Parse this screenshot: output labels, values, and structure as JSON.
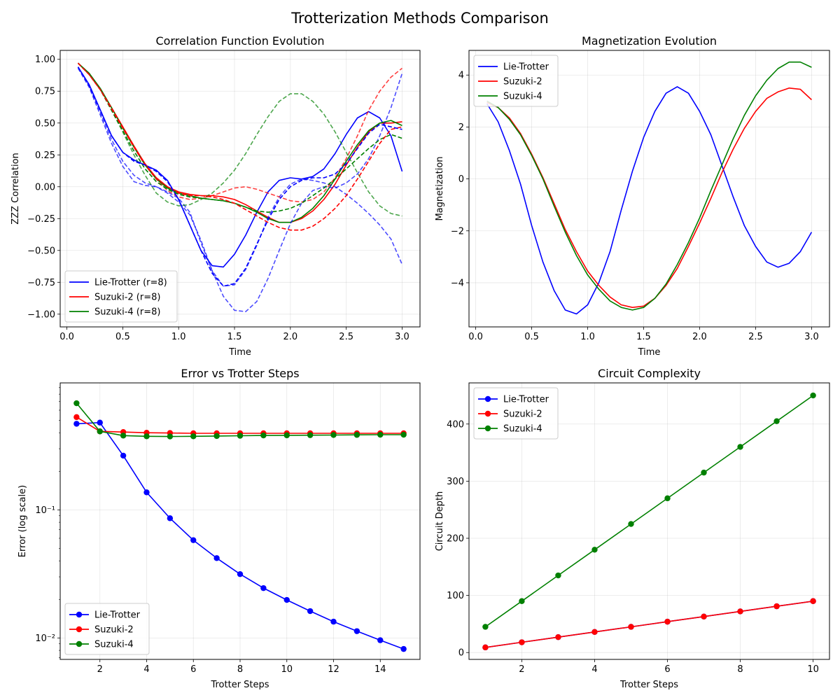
{
  "figure_title": "Trotterization Methods Comparison",
  "chart_data": [
    {
      "type": "line",
      "title": "Correlation Function Evolution",
      "xlabel": "Time",
      "ylabel": "ZZZ Correlation",
      "xlim": [
        -0.06,
        3.16
      ],
      "ylim": [
        -1.1,
        1.07
      ],
      "xticks": [
        0.0,
        0.5,
        1.0,
        1.5,
        2.0,
        2.5,
        3.0
      ],
      "xtick_labels": [
        "0.0",
        "0.5",
        "1.0",
        "1.5",
        "2.0",
        "2.5",
        "3.0"
      ],
      "yticks": [
        -1.0,
        -0.75,
        -0.5,
        -0.25,
        0.0,
        0.25,
        0.5,
        0.75,
        1.0
      ],
      "ytick_labels": [
        "−1.00",
        "−0.75",
        "−0.50",
        "−0.25",
        "0.00",
        "0.25",
        "0.50",
        "0.75",
        "1.00"
      ],
      "grid": true,
      "legend_position": "lower-left",
      "x": [
        0.1,
        0.2,
        0.3,
        0.4,
        0.5,
        0.6,
        0.7,
        0.8,
        0.9,
        1.0,
        1.1,
        1.2,
        1.3,
        1.4,
        1.5,
        1.6,
        1.7,
        1.8,
        1.9,
        2.0,
        2.1,
        2.2,
        2.3,
        2.4,
        2.5,
        2.6,
        2.7,
        2.8,
        2.9,
        3.0
      ],
      "series": [
        {
          "name": "Lie-Trotter (r=8)",
          "color": "#0000ff",
          "style": "solid",
          "legend": true,
          "values": [
            0.94,
            0.8,
            0.6,
            0.4,
            0.27,
            0.21,
            0.17,
            0.13,
            0.05,
            -0.1,
            -0.3,
            -0.5,
            -0.62,
            -0.63,
            -0.53,
            -0.38,
            -0.2,
            -0.04,
            0.05,
            0.07,
            0.06,
            0.08,
            0.14,
            0.26,
            0.41,
            0.54,
            0.59,
            0.54,
            0.4,
            0.12
          ]
        },
        {
          "name": "Suzuki-2 (r=8)",
          "color": "#ff0000",
          "style": "solid",
          "legend": true,
          "values": [
            0.97,
            0.88,
            0.76,
            0.62,
            0.47,
            0.32,
            0.18,
            0.07,
            0.0,
            -0.04,
            -0.06,
            -0.07,
            -0.07,
            -0.08,
            -0.1,
            -0.14,
            -0.19,
            -0.24,
            -0.28,
            -0.28,
            -0.25,
            -0.19,
            -0.1,
            0.02,
            0.17,
            0.31,
            0.43,
            0.5,
            0.5,
            0.51
          ]
        },
        {
          "name": "Suzuki-4 (r=8)",
          "color": "#008000",
          "style": "solid",
          "legend": true,
          "values": [
            0.97,
            0.89,
            0.77,
            0.62,
            0.46,
            0.31,
            0.17,
            0.06,
            -0.01,
            -0.05,
            -0.07,
            -0.09,
            -0.1,
            -0.11,
            -0.13,
            -0.16,
            -0.2,
            -0.25,
            -0.28,
            -0.28,
            -0.24,
            -0.17,
            -0.07,
            0.06,
            0.2,
            0.33,
            0.44,
            0.5,
            0.52,
            0.48
          ]
        },
        {
          "color": "#0000ff",
          "style": "dashed",
          "opacity": 0.7,
          "legend": false,
          "values": [
            0.93,
            0.78,
            0.56,
            0.34,
            0.16,
            0.04,
            0.01,
            0.0,
            -0.04,
            -0.09,
            -0.2,
            -0.44,
            -0.66,
            -0.78,
            -0.77,
            -0.65,
            -0.46,
            -0.24,
            -0.08,
            0.02,
            0.06,
            0.05,
            0.03,
            0.0,
            -0.06,
            -0.13,
            -0.21,
            -0.3,
            -0.41,
            -0.61
          ]
        },
        {
          "color": "#0000ff",
          "style": "dashed",
          "opacity": 0.7,
          "legend": false,
          "values": [
            0.94,
            0.79,
            0.58,
            0.37,
            0.2,
            0.09,
            0.03,
            0.0,
            -0.05,
            -0.12,
            -0.22,
            -0.42,
            -0.66,
            -0.86,
            -0.97,
            -0.98,
            -0.9,
            -0.72,
            -0.5,
            -0.29,
            -0.13,
            -0.03,
            0.0,
            -0.01,
            0.03,
            0.1,
            0.22,
            0.4,
            0.62,
            0.89
          ]
        },
        {
          "color": "#ff0000",
          "style": "dashed",
          "opacity": 0.75,
          "legend": false,
          "values": [
            0.97,
            0.88,
            0.76,
            0.62,
            0.47,
            0.32,
            0.17,
            0.06,
            -0.03,
            -0.08,
            -0.1,
            -0.09,
            -0.07,
            -0.04,
            -0.01,
            0.0,
            -0.02,
            -0.05,
            -0.08,
            -0.11,
            -0.12,
            -0.1,
            -0.04,
            0.07,
            0.22,
            0.4,
            0.6,
            0.75,
            0.86,
            0.93
          ]
        },
        {
          "color": "#008000",
          "style": "dashed",
          "opacity": 0.7,
          "legend": false,
          "values": [
            0.97,
            0.89,
            0.76,
            0.6,
            0.43,
            0.25,
            0.09,
            -0.05,
            -0.12,
            -0.15,
            -0.14,
            -0.1,
            -0.05,
            0.03,
            0.13,
            0.26,
            0.41,
            0.55,
            0.67,
            0.73,
            0.73,
            0.67,
            0.57,
            0.43,
            0.27,
            0.11,
            -0.04,
            -0.15,
            -0.21,
            -0.23
          ]
        },
        {
          "color": "#008000",
          "style": "dashed",
          "opacity": 1.0,
          "legend": false,
          "values": [
            0.97,
            0.88,
            0.76,
            0.6,
            0.44,
            0.28,
            0.14,
            0.04,
            -0.02,
            -0.06,
            -0.08,
            -0.09,
            -0.1,
            -0.11,
            -0.13,
            -0.16,
            -0.19,
            -0.2,
            -0.19,
            -0.17,
            -0.13,
            -0.07,
            -0.01,
            0.06,
            0.14,
            0.22,
            0.3,
            0.37,
            0.41,
            0.38
          ]
        },
        {
          "color": "#ff0000",
          "style": "dashed",
          "opacity": 1.0,
          "legend": false,
          "values": [
            0.97,
            0.88,
            0.76,
            0.61,
            0.46,
            0.31,
            0.17,
            0.07,
            0.0,
            -0.05,
            -0.07,
            -0.07,
            -0.08,
            -0.1,
            -0.13,
            -0.18,
            -0.23,
            -0.28,
            -0.32,
            -0.34,
            -0.34,
            -0.31,
            -0.25,
            -0.17,
            -0.07,
            0.06,
            0.2,
            0.34,
            0.45,
            0.47
          ]
        },
        {
          "color": "#0000ff",
          "style": "dashed",
          "opacity": 1.0,
          "legend": false,
          "values": [
            0.94,
            0.79,
            0.6,
            0.4,
            0.27,
            0.2,
            0.17,
            0.12,
            0.04,
            -0.1,
            -0.3,
            -0.5,
            -0.68,
            -0.78,
            -0.76,
            -0.64,
            -0.45,
            -0.26,
            -0.1,
            0.0,
            0.05,
            0.07,
            0.07,
            0.1,
            0.18,
            0.3,
            0.42,
            0.49,
            0.47,
            0.45
          ]
        }
      ]
    },
    {
      "type": "line",
      "title": "Magnetization Evolution",
      "xlabel": "Time",
      "ylabel": "Magnetization",
      "xlim": [
        -0.06,
        3.16
      ],
      "ylim": [
        -5.7,
        4.95
      ],
      "xticks": [
        0.0,
        0.5,
        1.0,
        1.5,
        2.0,
        2.5,
        3.0
      ],
      "xtick_labels": [
        "0.0",
        "0.5",
        "1.0",
        "1.5",
        "2.0",
        "2.5",
        "3.0"
      ],
      "yticks": [
        -4,
        -2,
        0,
        2,
        4
      ],
      "ytick_labels": [
        "−4",
        "−2",
        "0",
        "2",
        "4"
      ],
      "grid": true,
      "legend_position": "upper-left",
      "x": [
        0.1,
        0.2,
        0.3,
        0.4,
        0.5,
        0.6,
        0.7,
        0.8,
        0.9,
        1.0,
        1.1,
        1.2,
        1.3,
        1.4,
        1.5,
        1.6,
        1.7,
        1.8,
        1.9,
        2.0,
        2.1,
        2.2,
        2.3,
        2.4,
        2.5,
        2.6,
        2.7,
        2.8,
        2.9,
        3.0
      ],
      "series": [
        {
          "name": "Lie-Trotter",
          "color": "#0000ff",
          "style": "solid",
          "legend": true,
          "values": [
            2.9,
            2.2,
            1.1,
            -0.2,
            -1.8,
            -3.2,
            -4.3,
            -5.05,
            -5.2,
            -4.85,
            -4.0,
            -2.8,
            -1.2,
            0.3,
            1.6,
            2.6,
            3.3,
            3.55,
            3.3,
            2.6,
            1.7,
            0.5,
            -0.7,
            -1.8,
            -2.6,
            -3.2,
            -3.4,
            -3.25,
            -2.8,
            -2.05
          ]
        },
        {
          "name": "Suzuki-2",
          "color": "#ff0000",
          "style": "solid",
          "legend": true,
          "values": [
            2.95,
            2.75,
            2.35,
            1.75,
            0.95,
            0.05,
            -0.95,
            -1.95,
            -2.8,
            -3.55,
            -4.1,
            -4.55,
            -4.85,
            -4.95,
            -4.9,
            -4.6,
            -4.1,
            -3.45,
            -2.6,
            -1.7,
            -0.75,
            0.25,
            1.15,
            1.95,
            2.6,
            3.1,
            3.35,
            3.5,
            3.45,
            3.05
          ]
        },
        {
          "name": "Suzuki-4",
          "color": "#008000",
          "style": "solid",
          "legend": true,
          "values": [
            3.0,
            2.75,
            2.3,
            1.7,
            0.9,
            0.0,
            -1.05,
            -2.05,
            -2.95,
            -3.7,
            -4.25,
            -4.7,
            -4.95,
            -5.05,
            -4.95,
            -4.6,
            -4.05,
            -3.3,
            -2.45,
            -1.5,
            -0.45,
            0.55,
            1.55,
            2.45,
            3.2,
            3.8,
            4.25,
            4.5,
            4.5,
            4.3
          ]
        }
      ]
    },
    {
      "type": "line",
      "title": "Error vs Trotter Steps",
      "xlabel": "Trotter Steps",
      "ylabel": "Error (log scale)",
      "scale_y": "log",
      "xlim": [
        0.3,
        15.7
      ],
      "ylim": [
        0.0068,
        0.98
      ],
      "xticks": [
        2,
        4,
        6,
        8,
        10,
        12,
        14
      ],
      "xtick_labels": [
        "2",
        "4",
        "6",
        "8",
        "10",
        "12",
        "14"
      ],
      "yticks": [
        0.01,
        0.1
      ],
      "ytick_labels": [
        "10⁻²",
        "10⁻¹"
      ],
      "grid": true,
      "legend_position": "lower-left",
      "markers": true,
      "x": [
        1,
        2,
        3,
        4,
        5,
        6,
        7,
        8,
        9,
        10,
        11,
        12,
        13,
        14,
        15
      ],
      "series": [
        {
          "name": "Lie-Trotter",
          "color": "#0000ff",
          "style": "solid",
          "legend": true,
          "values": [
            0.47,
            0.48,
            0.265,
            0.137,
            0.086,
            0.058,
            0.042,
            0.0315,
            0.0245,
            0.0198,
            0.0162,
            0.0134,
            0.0113,
            0.0096,
            0.0082
          ]
        },
        {
          "name": "Suzuki-2",
          "color": "#ff0000",
          "style": "solid",
          "legend": true,
          "values": [
            0.53,
            0.41,
            0.405,
            0.4,
            0.398,
            0.396,
            0.396,
            0.396,
            0.396,
            0.396,
            0.396,
            0.396,
            0.396,
            0.396,
            0.396
          ]
        },
        {
          "name": "Suzuki-4",
          "color": "#008000",
          "style": "solid",
          "legend": true,
          "values": [
            0.68,
            0.41,
            0.38,
            0.375,
            0.374,
            0.375,
            0.377,
            0.379,
            0.381,
            0.382,
            0.383,
            0.384,
            0.385,
            0.386,
            0.386
          ]
        }
      ]
    },
    {
      "type": "line",
      "title": "Circuit Complexity",
      "xlabel": "Trotter Steps",
      "ylabel": "Circuit Depth",
      "xlim": [
        0.55,
        10.45
      ],
      "ylim": [
        -12,
        472
      ],
      "xticks": [
        2,
        4,
        6,
        8,
        10
      ],
      "xtick_labels": [
        "2",
        "4",
        "6",
        "8",
        "10"
      ],
      "yticks": [
        0,
        100,
        200,
        300,
        400
      ],
      "ytick_labels": [
        "0",
        "100",
        "200",
        "300",
        "400"
      ],
      "grid": true,
      "legend_position": "upper-left",
      "markers": true,
      "x": [
        1,
        2,
        3,
        4,
        5,
        6,
        7,
        8,
        9,
        10
      ],
      "series": [
        {
          "name": "Lie-Trotter",
          "color": "#0000ff",
          "style": "solid",
          "legend": true,
          "values": [
            9,
            18,
            27,
            36,
            45,
            54,
            63,
            72,
            81,
            90
          ]
        },
        {
          "name": "Suzuki-2",
          "color": "#ff0000",
          "style": "solid",
          "legend": true,
          "values": [
            9,
            18,
            27,
            36,
            45,
            54,
            63,
            72,
            81,
            90
          ]
        },
        {
          "name": "Suzuki-4",
          "color": "#008000",
          "style": "solid",
          "legend": true,
          "values": [
            45,
            90,
            135,
            180,
            225,
            270,
            315,
            360,
            405,
            450
          ]
        }
      ]
    }
  ]
}
